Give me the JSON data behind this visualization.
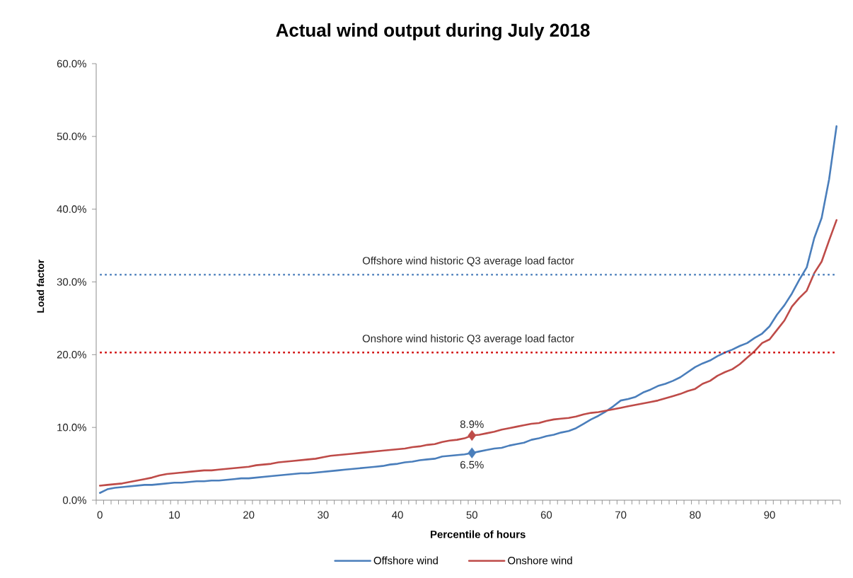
{
  "chart_data": {
    "type": "line",
    "title": "Actual wind output during July 2018",
    "xlabel": "Percentile of hours",
    "ylabel": "Load factor",
    "categories": [
      "0",
      null,
      null,
      null,
      null,
      null,
      null,
      null,
      null,
      null,
      "10",
      null,
      null,
      null,
      null,
      null,
      null,
      null,
      null,
      null,
      "20",
      null,
      null,
      null,
      null,
      null,
      null,
      null,
      null,
      null,
      "30",
      null,
      null,
      null,
      null,
      null,
      null,
      null,
      null,
      null,
      "40",
      null,
      null,
      null,
      null,
      null,
      null,
      null,
      null,
      null,
      "50",
      null,
      null,
      null,
      null,
      null,
      null,
      null,
      null,
      null,
      "60",
      null,
      null,
      null,
      null,
      null,
      null,
      null,
      null,
      null,
      "70",
      null,
      null,
      null,
      null,
      null,
      null,
      null,
      null,
      null,
      "80",
      null,
      null,
      null,
      null,
      null,
      null,
      null,
      null,
      null,
      "90",
      null,
      null,
      null,
      null,
      null,
      null,
      null,
      null,
      null
    ],
    "series": [
      {
        "name": "Offshore wind",
        "color": "#4a7ebb",
        "values": [
          1.0,
          1.5,
          1.7,
          1.8,
          1.9,
          2.0,
          2.1,
          2.1,
          2.2,
          2.3,
          2.4,
          2.4,
          2.5,
          2.6,
          2.6,
          2.7,
          2.7,
          2.8,
          2.9,
          3.0,
          3.0,
          3.1,
          3.2,
          3.3,
          3.4,
          3.5,
          3.6,
          3.7,
          3.7,
          3.8,
          3.9,
          4.0,
          4.1,
          4.2,
          4.3,
          4.4,
          4.5,
          4.6,
          4.7,
          4.9,
          5.0,
          5.2,
          5.3,
          5.5,
          5.6,
          5.7,
          6.0,
          6.1,
          6.2,
          6.3,
          6.5,
          6.7,
          6.9,
          7.1,
          7.2,
          7.5,
          7.7,
          7.9,
          8.3,
          8.5,
          8.8,
          9.0,
          9.3,
          9.5,
          9.9,
          10.5,
          11.1,
          11.6,
          12.2,
          12.9,
          13.7,
          13.9,
          14.2,
          14.8,
          15.2,
          15.7,
          16.0,
          16.4,
          16.9,
          17.6,
          18.3,
          18.8,
          19.2,
          19.8,
          20.3,
          20.7,
          21.2,
          21.6,
          22.3,
          22.9,
          23.9,
          25.5,
          26.8,
          28.4,
          30.3,
          32.0,
          36.0,
          38.8,
          44.1,
          51.4
        ]
      },
      {
        "name": "Onshore wind",
        "color": "#be4b48",
        "values": [
          2.0,
          2.1,
          2.2,
          2.3,
          2.5,
          2.7,
          2.9,
          3.1,
          3.4,
          3.6,
          3.7,
          3.8,
          3.9,
          4.0,
          4.1,
          4.1,
          4.2,
          4.3,
          4.4,
          4.5,
          4.6,
          4.8,
          4.9,
          5.0,
          5.2,
          5.3,
          5.4,
          5.5,
          5.6,
          5.7,
          5.9,
          6.1,
          6.2,
          6.3,
          6.4,
          6.5,
          6.6,
          6.7,
          6.8,
          6.9,
          7.0,
          7.1,
          7.3,
          7.4,
          7.6,
          7.7,
          8.0,
          8.2,
          8.3,
          8.5,
          8.9,
          9.0,
          9.2,
          9.4,
          9.7,
          9.9,
          10.1,
          10.3,
          10.5,
          10.6,
          10.9,
          11.1,
          11.2,
          11.3,
          11.5,
          11.8,
          12.0,
          12.1,
          12.3,
          12.5,
          12.7,
          12.9,
          13.1,
          13.3,
          13.5,
          13.7,
          14.0,
          14.3,
          14.6,
          15.0,
          15.3,
          16.0,
          16.4,
          17.1,
          17.6,
          18.0,
          18.7,
          19.6,
          20.5,
          21.6,
          22.1,
          23.4,
          24.7,
          26.6,
          27.8,
          28.8,
          31.2,
          32.8,
          35.7,
          38.5
        ]
      },
      {
        "type": "scatter",
        "x": [
          "50"
        ],
        "values": [
          6.5
        ],
        "color": "#4a7ebb",
        "marker": "diamond",
        "value_labels": [
          "6.5%"
        ]
      },
      {
        "type": "scatter",
        "x": [
          "50"
        ],
        "values": [
          8.9
        ],
        "color": "#be4b48",
        "marker": "diamond",
        "value_labels": [
          "8.9%"
        ]
      }
    ],
    "ylim": [
      0,
      60
    ],
    "yticks": [
      {
        "value": 0,
        "label": "0.0%"
      },
      {
        "value": 10,
        "label": "10.0%"
      },
      {
        "value": 20,
        "label": "20.0%"
      },
      {
        "value": 30,
        "label": "30.0%"
      },
      {
        "value": 40,
        "label": "40.0%"
      },
      {
        "value": 50,
        "label": "50.0%"
      },
      {
        "value": 60,
        "label": "60.0%"
      }
    ],
    "ref_lines": [
      {
        "axis": "y",
        "value": 31.0,
        "label": "Offshore wind historic Q3 average load factor",
        "color": "#4f81bd",
        "line_style": "dotted"
      },
      {
        "axis": "y",
        "value": 20.3,
        "label": "Onshore wind historic Q3 average load factor",
        "color": "#d00000",
        "line_style": "dotted"
      }
    ],
    "legend": "bottom"
  }
}
